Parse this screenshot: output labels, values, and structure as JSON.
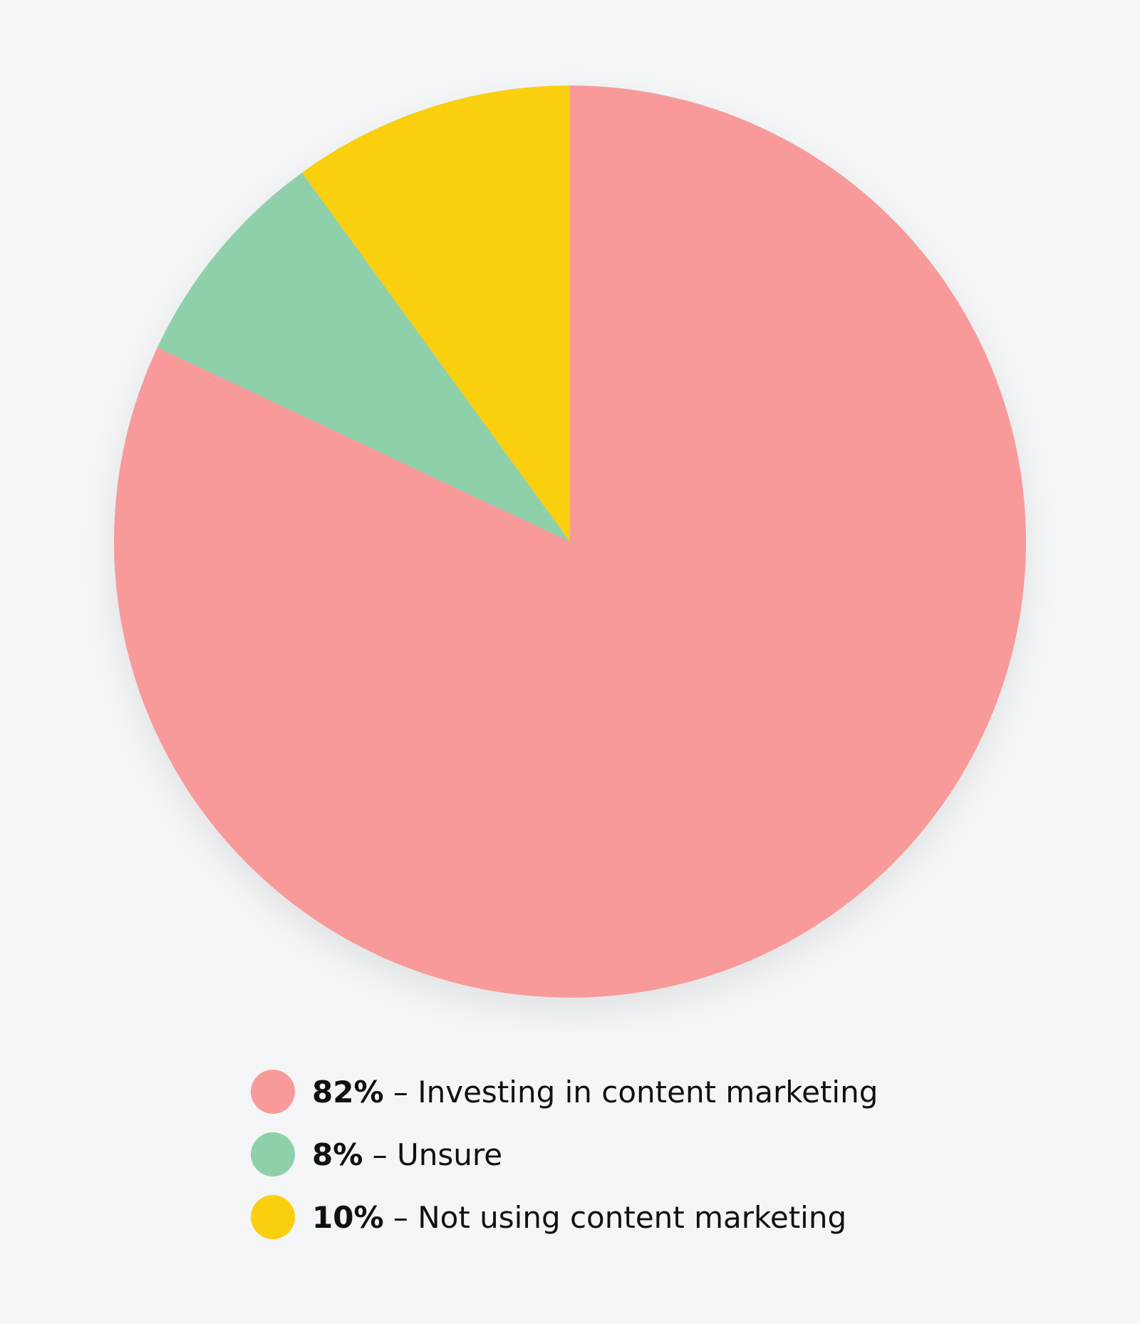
{
  "chart_data": {
    "type": "pie",
    "start": "top",
    "direction": "clockwise",
    "legend_placement": "bottom",
    "slices": [
      {
        "percent_label": "82%",
        "label": "Investing in content marketing",
        "value": 82,
        "color": "#f79a99"
      },
      {
        "percent_label": "8%",
        "label": "Unsure",
        "value": 8,
        "color": "#8ed0aa"
      },
      {
        "percent_label": "10%",
        "label": "Not using content marketing",
        "value": 10,
        "color": "#facf10"
      }
    ]
  },
  "separator": " – "
}
